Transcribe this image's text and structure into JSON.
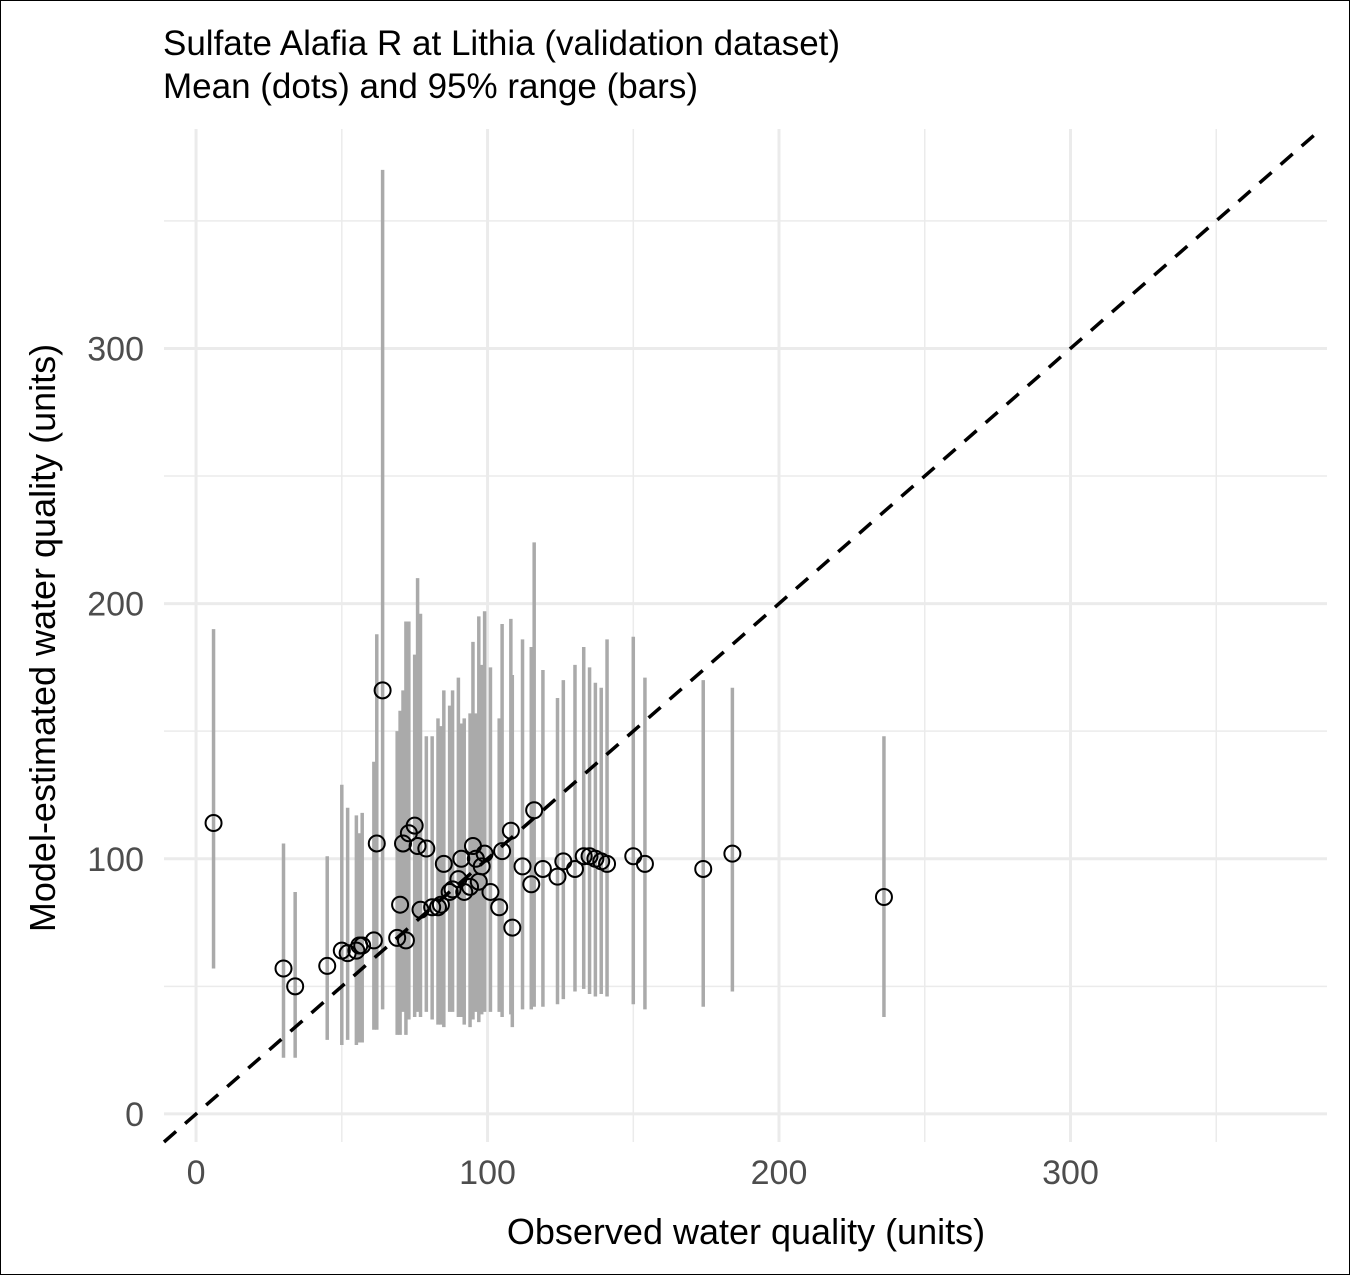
{
  "chart_data": {
    "type": "scatter",
    "title": "Sulfate Alafia R at Lithia (validation dataset)",
    "subtitle": "Mean (dots) and 95% range (bars)",
    "xlabel": "Observed water quality (units)",
    "ylabel": "Model-estimated water quality (units)",
    "xlim": [
      -11,
      388
    ],
    "ylim": [
      -11,
      386
    ],
    "x_ticks": [
      "0",
      "100",
      "200",
      "300"
    ],
    "y_ticks": [
      "0",
      "100",
      "200",
      "300"
    ],
    "grid": true,
    "reference_line": {
      "slope": 1,
      "intercept": 0,
      "style": "dashed"
    },
    "colors": {
      "bars": "#aaaaaa",
      "points": "#000000",
      "grid": "#ebebeb",
      "reference": "#000000"
    },
    "series": [
      {
        "points": [
          {
            "x": 6,
            "y": 114,
            "lo": 57,
            "hi": 190
          },
          {
            "x": 30,
            "y": 57,
            "lo": 22,
            "hi": 106
          },
          {
            "x": 34,
            "y": 50,
            "lo": 22,
            "hi": 87
          },
          {
            "x": 45,
            "y": 58,
            "lo": 29,
            "hi": 101
          },
          {
            "x": 50,
            "y": 64,
            "lo": 27,
            "hi": 129
          },
          {
            "x": 52,
            "y": 63,
            "lo": 29,
            "hi": 120
          },
          {
            "x": 55,
            "y": 64,
            "lo": 27,
            "hi": 117
          },
          {
            "x": 56,
            "y": 66,
            "lo": 28,
            "hi": 110
          },
          {
            "x": 57,
            "y": 66,
            "lo": 28,
            "hi": 118
          },
          {
            "x": 61,
            "y": 68,
            "lo": 33,
            "hi": 138
          },
          {
            "x": 62,
            "y": 106,
            "lo": 33,
            "hi": 188
          },
          {
            "x": 64,
            "y": 166,
            "lo": 41,
            "hi": 370
          },
          {
            "x": 69,
            "y": 69,
            "lo": 31,
            "hi": 150
          },
          {
            "x": 70,
            "y": 82,
            "lo": 31,
            "hi": 158
          },
          {
            "x": 71,
            "y": 106,
            "lo": 40,
            "hi": 166
          },
          {
            "x": 72,
            "y": 68,
            "lo": 31,
            "hi": 193
          },
          {
            "x": 73,
            "y": 110,
            "lo": 37,
            "hi": 193
          },
          {
            "x": 75,
            "y": 113,
            "lo": 38,
            "hi": 180
          },
          {
            "x": 76,
            "y": 105,
            "lo": 40,
            "hi": 210
          },
          {
            "x": 77,
            "y": 80,
            "lo": 38,
            "hi": 196
          },
          {
            "x": 79,
            "y": 104,
            "lo": 40,
            "hi": 148
          },
          {
            "x": 81,
            "y": 81,
            "lo": 37,
            "hi": 148
          },
          {
            "x": 83,
            "y": 81,
            "lo": 35,
            "hi": 155
          },
          {
            "x": 84,
            "y": 82,
            "lo": 35,
            "hi": 152
          },
          {
            "x": 85,
            "y": 98,
            "lo": 34,
            "hi": 166
          },
          {
            "x": 87,
            "y": 87,
            "lo": 40,
            "hi": 160
          },
          {
            "x": 88,
            "y": 88,
            "lo": 40,
            "hi": 166
          },
          {
            "x": 90,
            "y": 92,
            "lo": 38,
            "hi": 171
          },
          {
            "x": 91,
            "y": 100,
            "lo": 38,
            "hi": 153
          },
          {
            "x": 92,
            "y": 87,
            "lo": 35,
            "hi": 155
          },
          {
            "x": 94,
            "y": 89,
            "lo": 34,
            "hi": 157
          },
          {
            "x": 95,
            "y": 105,
            "lo": 37,
            "hi": 185
          },
          {
            "x": 96,
            "y": 100,
            "lo": 40,
            "hi": 157
          },
          {
            "x": 97,
            "y": 91,
            "lo": 36,
            "hi": 195
          },
          {
            "x": 98,
            "y": 97,
            "lo": 39,
            "hi": 176
          },
          {
            "x": 99,
            "y": 102,
            "lo": 40,
            "hi": 197
          },
          {
            "x": 101,
            "y": 87,
            "lo": 40,
            "hi": 175
          },
          {
            "x": 104,
            "y": 81,
            "lo": 40,
            "hi": 155
          },
          {
            "x": 105,
            "y": 103,
            "lo": 38,
            "hi": 192
          },
          {
            "x": 108,
            "y": 111,
            "lo": 39,
            "hi": 194
          },
          {
            "x": 108.5,
            "y": 73,
            "lo": 34,
            "hi": 172
          },
          {
            "x": 112,
            "y": 97,
            "lo": 41,
            "hi": 186
          },
          {
            "x": 115,
            "y": 90,
            "lo": 41,
            "hi": 183
          },
          {
            "x": 116,
            "y": 119,
            "lo": 42,
            "hi": 224
          },
          {
            "x": 119,
            "y": 96,
            "lo": 42,
            "hi": 174
          },
          {
            "x": 124,
            "y": 93,
            "lo": 43,
            "hi": 163
          },
          {
            "x": 126,
            "y": 99,
            "lo": 45,
            "hi": 170
          },
          {
            "x": 130,
            "y": 96,
            "lo": 48,
            "hi": 176
          },
          {
            "x": 133,
            "y": 101,
            "lo": 49,
            "hi": 183
          },
          {
            "x": 135,
            "y": 101,
            "lo": 47,
            "hi": 175
          },
          {
            "x": 137,
            "y": 100,
            "lo": 46,
            "hi": 169
          },
          {
            "x": 139,
            "y": 99,
            "lo": 47,
            "hi": 167
          },
          {
            "x": 141,
            "y": 98,
            "lo": 46,
            "hi": 186
          },
          {
            "x": 150,
            "y": 101,
            "lo": 43,
            "hi": 187
          },
          {
            "x": 154,
            "y": 98,
            "lo": 41,
            "hi": 171
          },
          {
            "x": 174,
            "y": 96,
            "lo": 42,
            "hi": 170
          },
          {
            "x": 184,
            "y": 102,
            "lo": 48,
            "hi": 167
          },
          {
            "x": 236,
            "y": 85,
            "lo": 38,
            "hi": 148
          }
        ]
      }
    ]
  }
}
